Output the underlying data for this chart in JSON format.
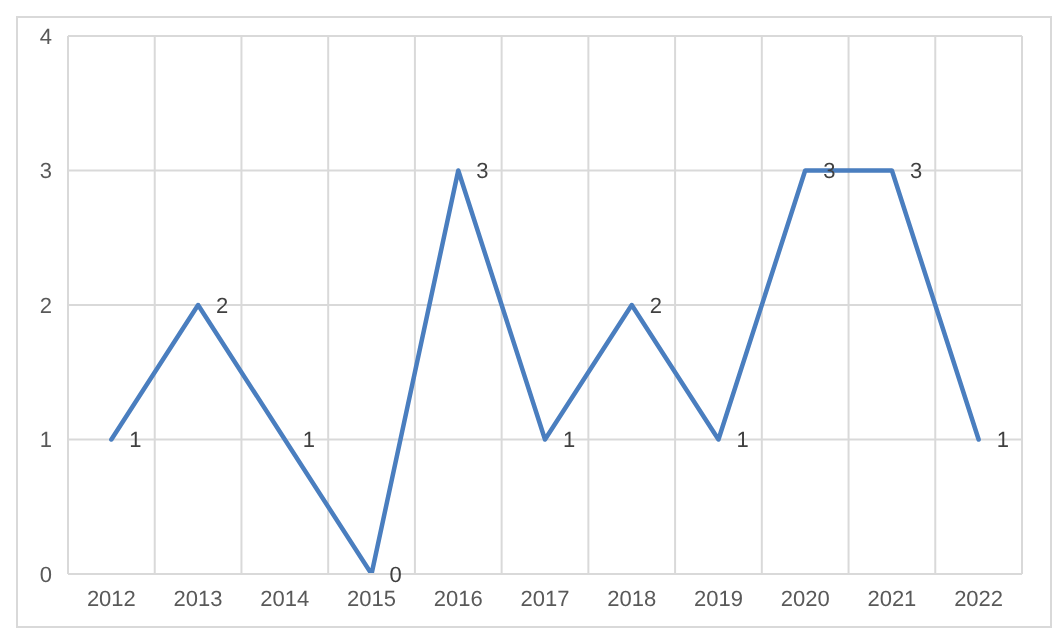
{
  "chart_data": {
    "type": "line",
    "categories": [
      "2012",
      "2013",
      "2014",
      "2015",
      "2016",
      "2017",
      "2018",
      "2019",
      "2020",
      "2021",
      "2022"
    ],
    "series": [
      {
        "color": "#4a7ebf",
        "values": [
          1,
          2,
          1,
          0,
          3,
          1,
          2,
          1,
          3,
          3,
          1
        ]
      }
    ],
    "ylim": [
      0,
      4
    ],
    "yticks": [
      0,
      1,
      2,
      3,
      4
    ],
    "grid": true,
    "data_labels": true,
    "marker": "none",
    "line_style": "solid"
  }
}
